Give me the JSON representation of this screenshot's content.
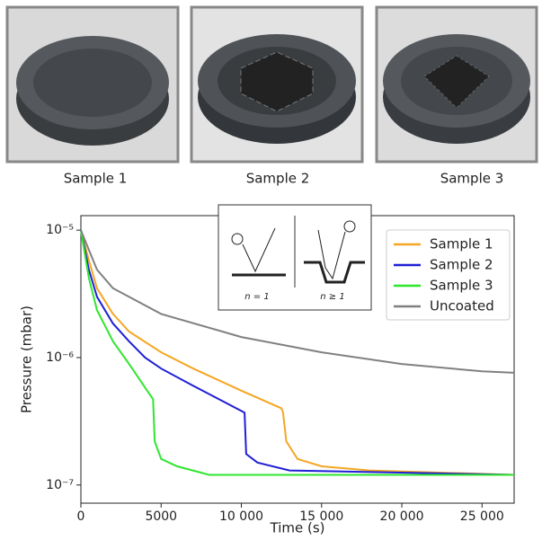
{
  "photos": {
    "captions": [
      "Sample 1",
      "Sample 2",
      "Sample 3"
    ]
  },
  "chart_data": {
    "type": "line",
    "x_label": "Time (s)",
    "y_label": "Pressure (mbar)",
    "xlim": [
      0,
      27000
    ],
    "xticks": [
      0,
      5000,
      {
        "value": 10000,
        "label": "10 000"
      },
      {
        "value": 15000,
        "label": "15 000"
      },
      {
        "value": 20000,
        "label": "20 000"
      },
      {
        "value": 25000,
        "label": "25 000"
      }
    ],
    "ylim": [
      7.2e-08,
      1.3e-05
    ],
    "log_y": true,
    "yticks": [
      {
        "value": 1e-07,
        "label": "10⁻⁷"
      },
      {
        "value": 1e-06,
        "label": "10⁻⁶"
      },
      {
        "value": 1e-05,
        "label": "10⁻⁵"
      }
    ],
    "legend": "upper right",
    "inset_labels": [
      "n = 1",
      "n ≥ 1"
    ],
    "series": [
      {
        "name": "Sample 1",
        "color": "#f5a623",
        "x": [
          0,
          500,
          1000,
          2000,
          3000,
          5000,
          7000,
          10000,
          12500,
          12600,
          12800,
          13500,
          15000,
          18000,
          27000
        ],
        "values": [
          1e-05,
          5.8e-06,
          3.5e-06,
          2.2e-06,
          1.6e-06,
          1.1e-06,
          8.2e-07,
          5.5e-07,
          4e-07,
          3.7e-07,
          2.2e-07,
          1.6e-07,
          1.4e-07,
          1.3e-07,
          1.2e-07
        ]
      },
      {
        "name": "Sample 2",
        "color": "#1f1fd6",
        "x": [
          0,
          500,
          1000,
          2000,
          3000,
          4000,
          5000,
          7000,
          10200,
          10300,
          11000,
          13000,
          27000
        ],
        "values": [
          1e-05,
          4.9e-06,
          3e-06,
          1.85e-06,
          1.34e-06,
          1e-06,
          8.2e-07,
          6e-07,
          3.7e-07,
          1.75e-07,
          1.5e-07,
          1.3e-07,
          1.2e-07
        ]
      },
      {
        "name": "Sample 3",
        "color": "#2ee62e",
        "x": [
          0,
          500,
          1000,
          2000,
          3000,
          4500,
          4600,
          5000,
          6000,
          8000,
          27000
        ],
        "values": [
          1e-05,
          4.2e-06,
          2.36e-06,
          1.34e-06,
          8.9e-07,
          4.7e-07,
          2.2e-07,
          1.6e-07,
          1.4e-07,
          1.2e-07,
          1.2e-07
        ]
      },
      {
        "name": "Uncoated",
        "color": "#808080",
        "x": [
          0,
          1000,
          2000,
          5000,
          10000,
          15000,
          20000,
          25000,
          27000
        ],
        "values": [
          1e-05,
          4.9e-06,
          3.5e-06,
          2.2e-06,
          1.45e-06,
          1.1e-06,
          8.9e-07,
          7.8e-07,
          7.6e-07
        ]
      }
    ]
  }
}
